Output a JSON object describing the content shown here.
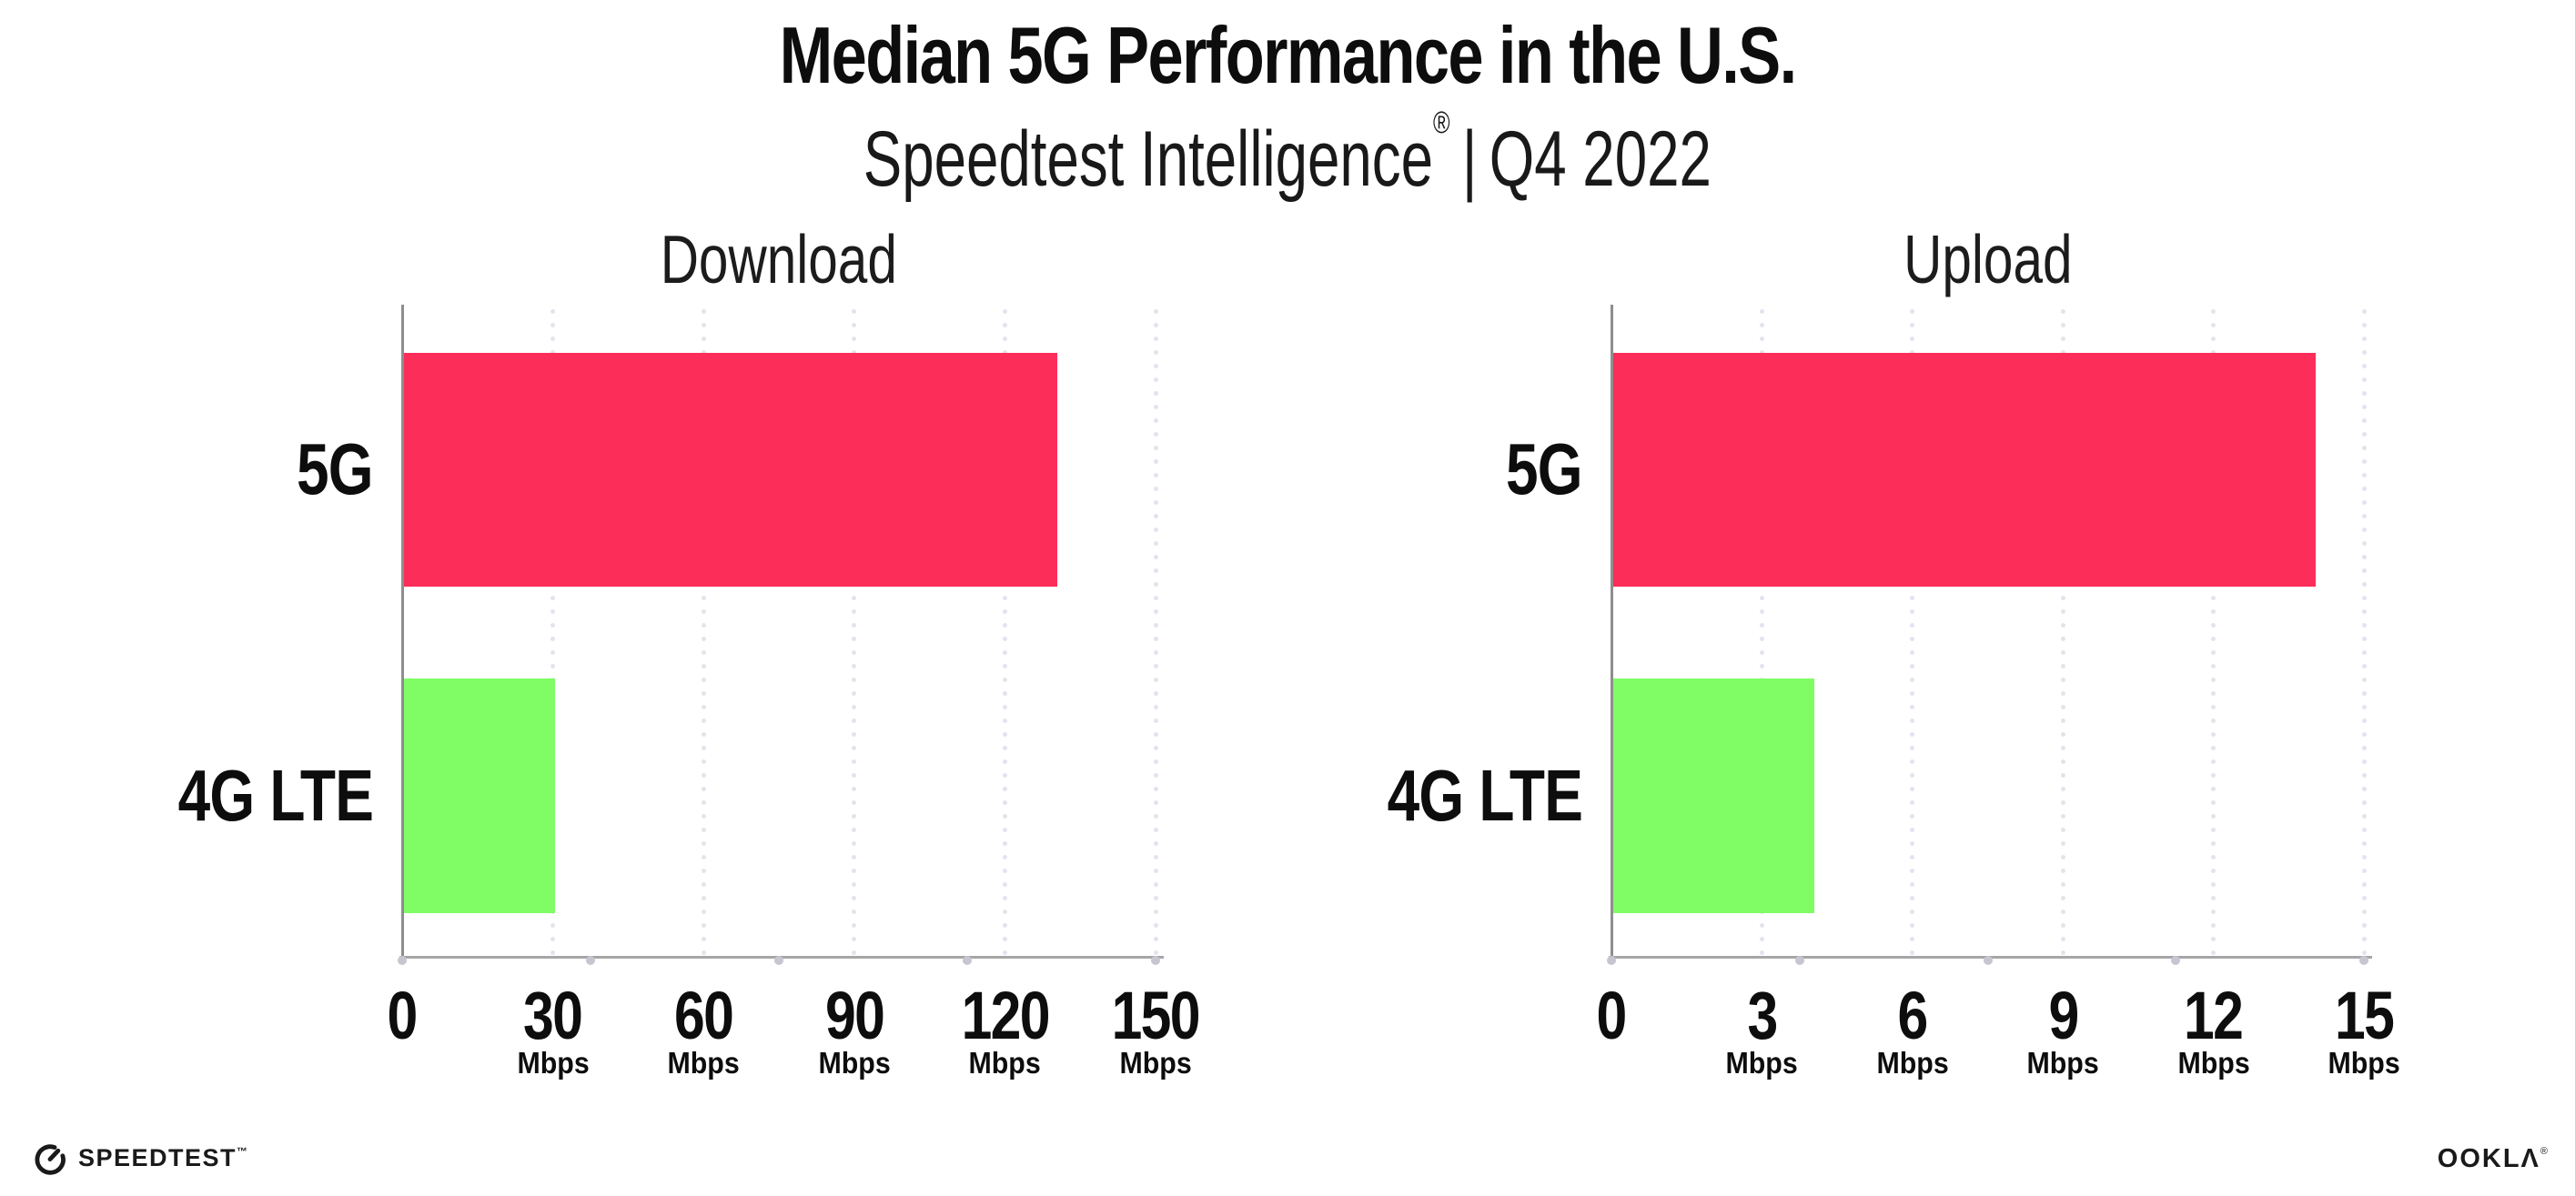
{
  "header": {
    "title": "Median 5G Performance in the U.S.",
    "subtitle": {
      "product": "Speedtest Intelligence",
      "registered_mark": "®",
      "separator": "|",
      "period": "Q4 2022"
    }
  },
  "chart_data": [
    {
      "type": "bar",
      "orientation": "horizontal",
      "title": "Download",
      "categories": [
        "5G",
        "4G LTE"
      ],
      "values": [
        130,
        30
      ],
      "unit": "Mbps",
      "xlim": [
        0,
        150
      ],
      "xtick_labels": [
        "0",
        "30",
        "60",
        "90",
        "120",
        "150"
      ],
      "bar_colors": [
        "#fd2d59",
        "#80fd64"
      ],
      "grid": "vertical-dotted",
      "legend": "none"
    },
    {
      "type": "bar",
      "orientation": "horizontal",
      "title": "Upload",
      "categories": [
        "5G",
        "4G LTE"
      ],
      "values": [
        14,
        4
      ],
      "unit": "Mbps",
      "xlim": [
        0,
        15
      ],
      "xtick_labels": [
        "0",
        "3",
        "6",
        "9",
        "12",
        "15"
      ],
      "bar_colors": [
        "#fd2d59",
        "#80fd64"
      ],
      "grid": "vertical-dotted",
      "legend": "none"
    }
  ],
  "colors": {
    "bar_5g": "#fd2d59",
    "bar_4g_lte": "#80fd64",
    "axis": "#8e8e8e",
    "gridline": "#e3e3ee",
    "text": "#0d0d0d",
    "background": "#ffffff"
  },
  "footer": {
    "speedtest_label": "SPEEDTEST",
    "speedtest_tm": "™",
    "ookla_label": "OOKLΛ",
    "ookla_reg": "®"
  }
}
